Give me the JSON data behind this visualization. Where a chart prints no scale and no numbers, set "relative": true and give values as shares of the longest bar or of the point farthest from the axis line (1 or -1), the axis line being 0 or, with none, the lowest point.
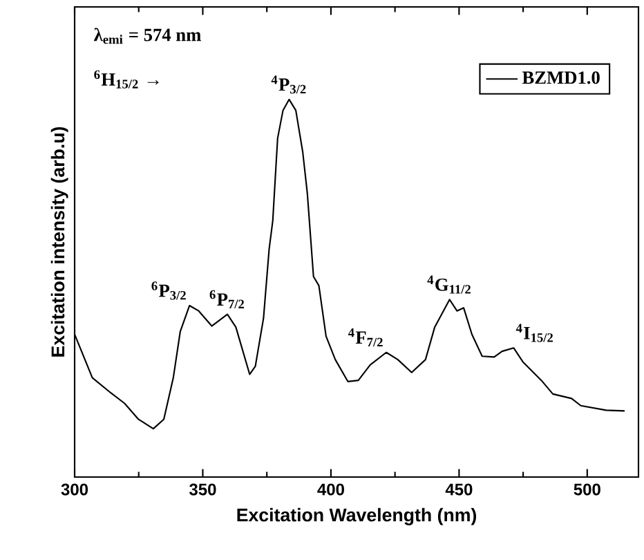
{
  "chart_data": {
    "type": "line",
    "relative": true,
    "xlabel": "Excitation Wavelength (nm)",
    "ylabel": "Excitation intensity (arb.u)",
    "xlim": [
      300,
      520
    ],
    "xticks": [
      300,
      350,
      400,
      450,
      500
    ],
    "legend": "top right",
    "marker": "none",
    "line_style": "solid",
    "series": [
      {
        "name": "BZMD1.0",
        "color": "#000000",
        "x": [
          300,
          306.9,
          314.1,
          319.5,
          324.9,
          330.7,
          334.8,
          338.5,
          341.2,
          344.8,
          348.4,
          353.5,
          359.6,
          362.9,
          368.3,
          370.5,
          373.7,
          375.9,
          377.3,
          379.2,
          381.3,
          383.7,
          386.3,
          389.0,
          390.8,
          393.2,
          395.3,
          398.1,
          401.7,
          406.6,
          410.7,
          415.3,
          421.6,
          426.1,
          431.5,
          436.9,
          440.5,
          446.3,
          449.2,
          451.8,
          455.0,
          459.0,
          463.7,
          466.8,
          471.3,
          474.9,
          482.1,
          486.6,
          493.9,
          497.5,
          507.4,
          514.6
        ],
        "values": [
          0.378,
          0.263,
          0.223,
          0.195,
          0.153,
          0.128,
          0.153,
          0.263,
          0.385,
          0.454,
          0.44,
          0.4,
          0.431,
          0.397,
          0.272,
          0.293,
          0.421,
          0.604,
          0.678,
          0.897,
          0.971,
          1.0,
          0.971,
          0.861,
          0.751,
          0.531,
          0.507,
          0.373,
          0.311,
          0.253,
          0.256,
          0.297,
          0.33,
          0.311,
          0.277,
          0.311,
          0.397,
          0.47,
          0.44,
          0.448,
          0.378,
          0.32,
          0.318,
          0.333,
          0.342,
          0.305,
          0.256,
          0.22,
          0.208,
          0.189,
          0.177,
          0.175
        ]
      }
    ],
    "annotations": [
      "λ$_{emi}$ = 574 nm",
      "$^{6}$H$_{15/2}$ →",
      {
        "text": "$^{6}$P$_{3/2}$",
        "x": 344.8,
        "y": 0.454
      },
      {
        "text": "$^{6}$P$_{7/2}$",
        "x": 359.6,
        "y": 0.431
      },
      {
        "text": "$^{4}$P$_{3/2}$",
        "x": 383.7,
        "y": 1.0
      },
      {
        "text": "$^{4}$F$_{7/2}$",
        "x": 421.6,
        "y": 0.33
      },
      {
        "text": "$^{4}$G$_{11/2}$",
        "x": 446.3,
        "y": 0.47
      },
      {
        "text": "$^{4}$I$_{15/2}$",
        "x": 471.3,
        "y": 0.342
      }
    ]
  }
}
